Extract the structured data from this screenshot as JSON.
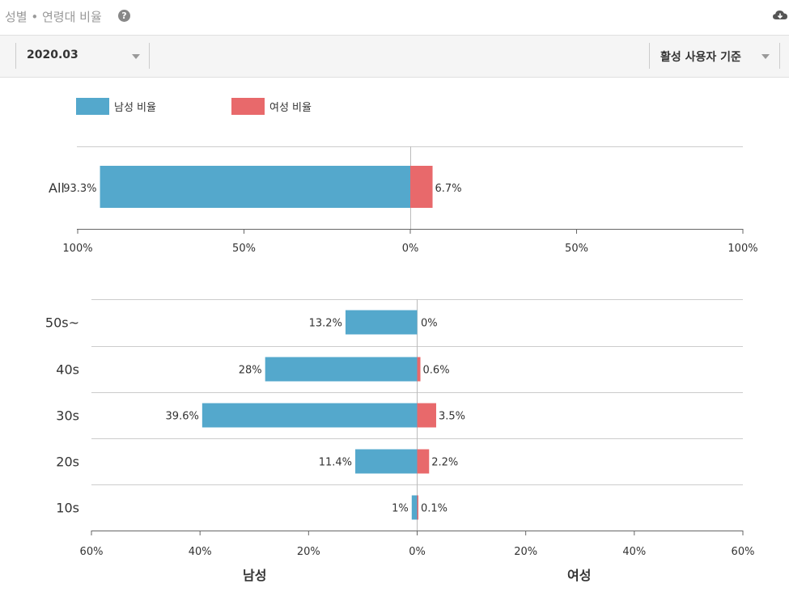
{
  "header": {
    "title": "성별 • 연령대 비율",
    "help_icon": "question-circle-icon",
    "download_icon": "cloud-download-icon"
  },
  "filters": {
    "period": "2020.03",
    "basis": "활성 사용자 기준"
  },
  "colors": {
    "male": "#54a8cc",
    "female": "#e8696b"
  },
  "chart_data": [
    {
      "type": "bar",
      "orientation": "horizontal-diverging",
      "legend": [
        "남성 비율",
        "여성 비율"
      ],
      "legend_position": "top-left",
      "categories": [
        "All"
      ],
      "series": [
        {
          "name": "남성 비율",
          "values": [
            93.3
          ]
        },
        {
          "name": "여성 비율",
          "values": [
            6.7
          ]
        }
      ],
      "value_labels": {
        "male": [
          "93.3%"
        ],
        "female": [
          "6.7%"
        ]
      },
      "xlim": [
        -100,
        100
      ],
      "tick_labels": [
        "100%",
        "50%",
        "0%",
        "50%",
        "100%"
      ]
    },
    {
      "type": "bar",
      "orientation": "horizontal-diverging",
      "categories": [
        "50s~",
        "40s",
        "30s",
        "20s",
        "10s"
      ],
      "series": [
        {
          "name": "남성",
          "values": [
            13.2,
            28,
            39.6,
            11.4,
            1
          ]
        },
        {
          "name": "여성",
          "values": [
            0,
            0.6,
            3.5,
            2.2,
            0.1
          ]
        }
      ],
      "value_labels": {
        "male": [
          "13.2%",
          "28%",
          "39.6%",
          "11.4%",
          "1%"
        ],
        "female": [
          "0%",
          "0.6%",
          "3.5%",
          "2.2%",
          "0.1%"
        ]
      },
      "xlim": [
        -60,
        60
      ],
      "tick_labels": [
        "60%",
        "40%",
        "20%",
        "0%",
        "20%",
        "40%",
        "60%"
      ],
      "side_labels": [
        "남성",
        "여성"
      ]
    }
  ]
}
